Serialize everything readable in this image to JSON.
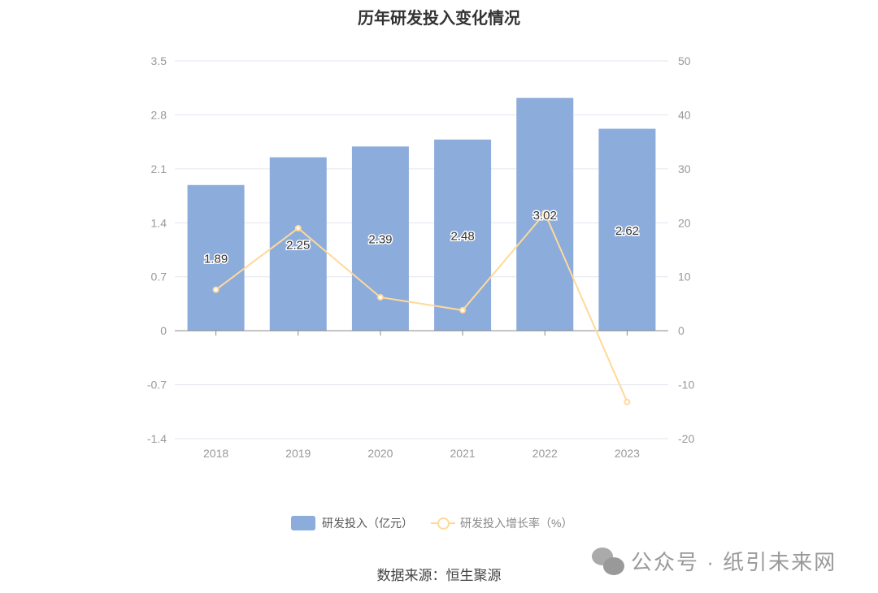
{
  "chart_data": {
    "type": "bar+line",
    "title": "历年研发投入变化情况",
    "categories": [
      "2018",
      "2019",
      "2020",
      "2021",
      "2022",
      "2023"
    ],
    "series": [
      {
        "name": "研发投入（亿元）",
        "type": "bar",
        "axis": "left",
        "values": [
          1.89,
          2.25,
          2.39,
          2.48,
          3.02,
          2.62
        ],
        "color": "#8cacdb"
      },
      {
        "name": "研发投入增长率（%）",
        "type": "line",
        "axis": "right",
        "values": [
          7.6,
          19.0,
          6.2,
          3.8,
          21.8,
          -13.2
        ],
        "color": "#ffd99a"
      }
    ],
    "left_axis": {
      "ylim": [
        -1.4,
        3.5
      ],
      "ticks": [
        "3.5",
        "2.8",
        "2.1",
        "1.4",
        "0.7",
        "0",
        "-0.7",
        "-1.4"
      ]
    },
    "right_axis": {
      "ylim": [
        -20,
        50
      ],
      "ticks": [
        "50",
        "40",
        "30",
        "20",
        "10",
        "0",
        "-10",
        "-20"
      ]
    },
    "grid": true,
    "legend": "bottom"
  },
  "source": "数据来源：恒生聚源",
  "watermark": "公众号 · 纸引未来网"
}
